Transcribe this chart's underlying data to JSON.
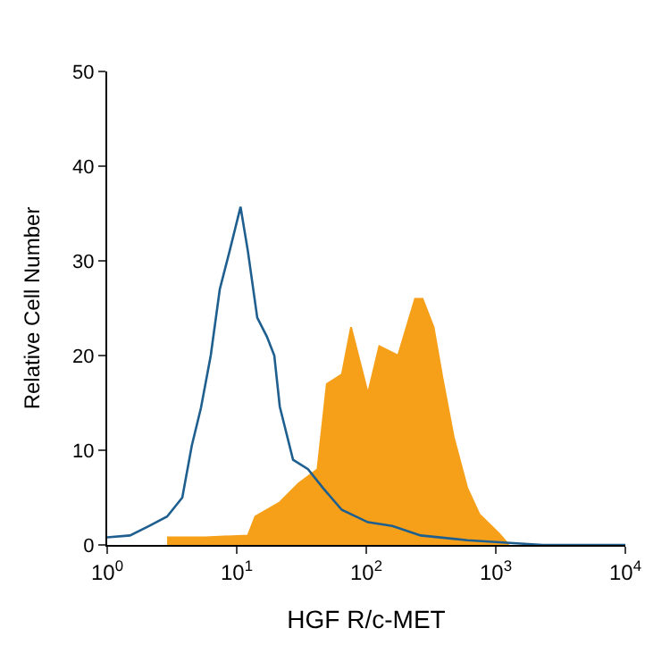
{
  "chart_data": {
    "type": "area",
    "xlabel": "HGF R/c-MET",
    "ylabel": "Relative Cell Number",
    "log": "x",
    "xlim": [
      1,
      10000
    ],
    "ylim": [
      0,
      50
    ],
    "xticks": [
      {
        "value": 1,
        "label": "10$^{0}$"
      },
      {
        "value": 10,
        "label": "10$^{1}$"
      },
      {
        "value": 100,
        "label": "10$^{2}$"
      },
      {
        "value": 1000,
        "label": "10$^{3}$"
      },
      {
        "value": 10000,
        "label": "10$^{4}$"
      }
    ],
    "yticks": [
      0,
      10,
      20,
      30,
      40,
      50
    ],
    "series": [
      {
        "color": "#f6a01a",
        "x": [
          2.9,
          5.7,
          12.2,
          13.9,
          21.5,
          30.1,
          42,
          49.6,
          64.8,
          76.3,
          103,
          126,
          176,
          238,
          272,
          331,
          388,
          473,
          603,
          750,
          1060,
          1260
        ],
        "values": [
          0.8,
          0.8,
          1,
          3,
          4.5,
          6.5,
          8,
          17,
          18,
          23,
          16,
          21,
          20,
          26,
          26,
          23,
          17.6,
          11.4,
          6,
          3.2,
          1.2,
          0
        ]
      },
      {
        "type": "line",
        "color": "#1f5f8f",
        "x": [
          1,
          1.5,
          2.1,
          2.9,
          3.8,
          4.5,
          5.3,
          6.3,
          7.4,
          8.8,
          10.7,
          12.2,
          14.4,
          17.1,
          19.5,
          21.5,
          27.2,
          35.5,
          46.4,
          64.8,
          103,
          159,
          263,
          603,
          2300,
          10000
        ],
        "values": [
          0.8,
          1,
          2,
          3,
          5,
          10.5,
          14.5,
          20,
          27,
          31,
          35.7,
          31,
          24,
          22,
          20,
          14.6,
          9,
          8,
          6,
          3.7,
          2.4,
          2,
          1,
          0.5,
          0,
          0
        ]
      }
    ]
  }
}
